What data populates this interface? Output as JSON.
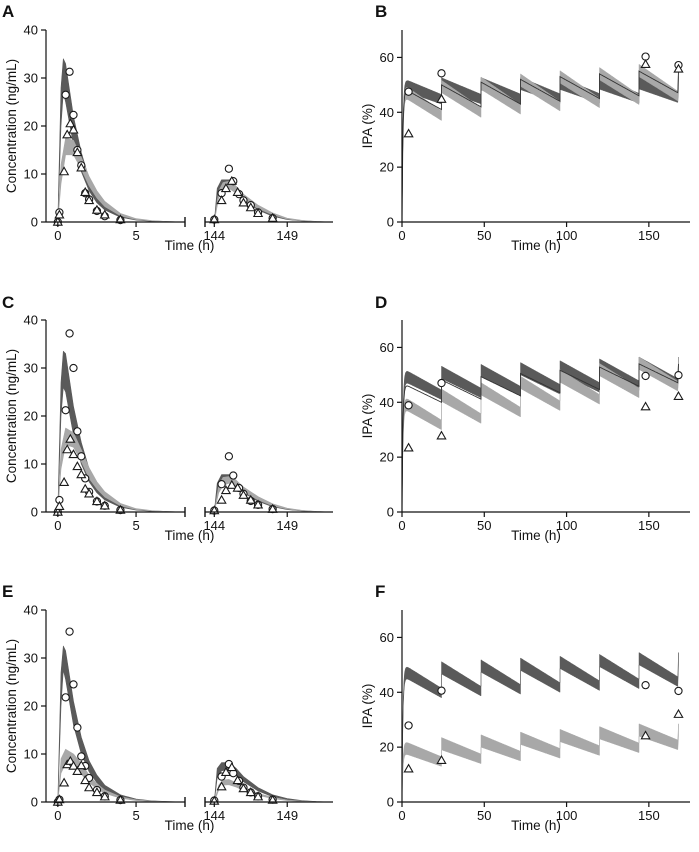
{
  "chart_data": [
    {
      "panel": "A",
      "type": "line",
      "ylabel": "Concentration (ng/mL)",
      "xlabel": "Time (h)",
      "ylim": [
        0,
        40
      ],
      "yticks": [
        0,
        10,
        20,
        30,
        40
      ],
      "xticks": [
        0,
        5,
        144,
        149
      ],
      "xlim_segments": [
        [
          -0.5,
          8
        ],
        [
          143.5,
          152
        ]
      ],
      "bands": [
        {
          "name": "dark band",
          "color": "#5a5a5a",
          "x": [
            0,
            0.2,
            0.35,
            0.5,
            1,
            1.5,
            2,
            2.5,
            3,
            4,
            5,
            6,
            7,
            8
          ],
          "lower": [
            0,
            20,
            27,
            25,
            16,
            10.5,
            6.5,
            4,
            2.5,
            1,
            0.4,
            0.15,
            0.05,
            0
          ],
          "upper": [
            0,
            28,
            34,
            33,
            22,
            14.5,
            9,
            5.8,
            3.6,
            1.5,
            0.6,
            0.25,
            0.1,
            0
          ]
        },
        {
          "name": "light band",
          "color": "#a8a8a8",
          "x": [
            0,
            0.2,
            0.5,
            1,
            1.5,
            2,
            2.5,
            3,
            4,
            5,
            6,
            7,
            8
          ],
          "lower": [
            0,
            8,
            14,
            14,
            11,
            7.5,
            5,
            3.2,
            1.3,
            0.5,
            0.2,
            0.08,
            0
          ],
          "upper": [
            0,
            12,
            17.5,
            17,
            13.5,
            9.5,
            6.5,
            4.3,
            1.8,
            0.7,
            0.3,
            0.1,
            0
          ]
        },
        {
          "name": "dark band late",
          "color": "#5a5a5a",
          "x": [
            144,
            144.2,
            144.5,
            145,
            145.5,
            146,
            147,
            148,
            149,
            150,
            151,
            152
          ],
          "lower": [
            0,
            5,
            7,
            7.3,
            6,
            4.5,
            2.5,
            1.2,
            0.5,
            0.2,
            0.08,
            0
          ],
          "upper": [
            0,
            7,
            8.8,
            8.8,
            7.4,
            5.6,
            3.2,
            1.6,
            0.7,
            0.3,
            0.1,
            0
          ]
        },
        {
          "name": "light band late",
          "color": "#a8a8a8",
          "x": [
            144,
            144.3,
            144.6,
            145,
            145.5,
            146,
            147,
            148,
            149,
            150,
            151,
            152
          ],
          "lower": [
            0,
            5,
            6.5,
            7,
            6,
            4.6,
            2.8,
            1.5,
            0.6,
            0.25,
            0.1,
            0
          ],
          "upper": [
            0,
            6.5,
            8.2,
            8.5,
            7.4,
            5.8,
            3.5,
            1.9,
            0.8,
            0.35,
            0.12,
            0
          ]
        }
      ],
      "circles": {
        "x": [
          0,
          0.1,
          0.5,
          0.75,
          1,
          1.25,
          1.5,
          1.75,
          2,
          2.5,
          3,
          4,
          144,
          144.5,
          145,
          145.3,
          145.7,
          146,
          146.5,
          147,
          148
        ],
        "y": [
          0,
          2,
          26.5,
          31.3,
          22.3,
          15,
          11.8,
          6,
          4.7,
          2.3,
          1.2,
          0.4,
          0.5,
          6,
          11.1,
          8.5,
          5.8,
          4.5,
          3.5,
          2,
          0.8
        ]
      },
      "triangles": {
        "x": [
          0,
          0.1,
          0.4,
          0.6,
          0.8,
          1,
          1.25,
          1.5,
          1.75,
          2,
          2.5,
          3,
          4,
          144,
          144.5,
          144.8,
          145.2,
          145.6,
          146,
          146.5,
          147,
          148
        ],
        "y": [
          0,
          1.5,
          10.5,
          18.2,
          20.5,
          19.2,
          14.5,
          11.3,
          6.2,
          4.5,
          2.5,
          1.5,
          0.5,
          0.5,
          4.5,
          7,
          8.5,
          6.2,
          4,
          3,
          1.8,
          0.8
        ]
      }
    },
    {
      "panel": "B",
      "type": "line",
      "ylabel": "IPA (%)",
      "xlabel": "Time (h)",
      "ylim": [
        0,
        70
      ],
      "yticks": [
        0,
        20,
        40,
        60
      ],
      "xlim": [
        0,
        175
      ],
      "xticks": [
        0,
        50,
        100,
        150
      ],
      "ipa_profile": {
        "dark": {
          "min": 43,
          "max": 50,
          "drift": 0.5
        },
        "light": {
          "min": 37,
          "max": 48,
          "drift": 7
        },
        "line": {
          "min": 41,
          "max": 49,
          "drift": 6
        }
      },
      "circles": {
        "x": [
          4,
          24,
          148,
          168
        ],
        "y": [
          47.5,
          54.2,
          60.3,
          57.2
        ]
      },
      "triangles": {
        "x": [
          4,
          24,
          148,
          168
        ],
        "y": [
          32.2,
          44.8,
          57.5,
          55.8
        ]
      }
    },
    {
      "panel": "C",
      "type": "line",
      "ylabel": "Concentration (ng/mL)",
      "xlabel": "Time (h)",
      "ylim": [
        0,
        40
      ],
      "yticks": [
        0,
        10,
        20,
        30,
        40
      ],
      "xticks": [
        0,
        5,
        144,
        149
      ],
      "xlim_segments": [
        [
          -0.5,
          8
        ],
        [
          143.5,
          152
        ]
      ],
      "bands": [
        {
          "name": "dark band",
          "color": "#5a5a5a",
          "x": [
            0,
            0.2,
            0.35,
            0.5,
            1,
            1.5,
            2,
            2.5,
            3,
            4,
            5,
            6,
            7,
            8
          ],
          "lower": [
            0,
            20,
            26,
            25,
            16,
            10,
            6.3,
            4,
            2.5,
            1,
            0.4,
            0.15,
            0.05,
            0
          ],
          "upper": [
            0,
            27,
            33.5,
            33,
            22,
            14.5,
            9,
            5.8,
            3.6,
            1.5,
            0.6,
            0.25,
            0.1,
            0
          ]
        },
        {
          "name": "light band",
          "color": "#a8a8a8",
          "x": [
            0,
            0.2,
            0.5,
            1,
            1.5,
            2,
            2.5,
            3,
            4,
            5,
            6,
            7,
            8
          ],
          "lower": [
            0,
            9,
            14,
            13.5,
            10.5,
            7,
            4.8,
            3.1,
            1.3,
            0.5,
            0.2,
            0.08,
            0
          ],
          "upper": [
            0,
            13,
            17.5,
            16.5,
            13,
            9.2,
            6.3,
            4.2,
            1.8,
            0.7,
            0.3,
            0.1,
            0
          ]
        },
        {
          "name": "dark band late",
          "color": "#5a5a5a",
          "x": [
            144,
            144.2,
            144.5,
            145,
            145.5,
            146,
            147,
            148,
            149,
            150,
            151,
            152
          ],
          "lower": [
            0,
            4,
            6,
            6.2,
            5.2,
            4,
            2.2,
            1.1,
            0.5,
            0.2,
            0.08,
            0
          ],
          "upper": [
            0,
            6,
            7.8,
            7.8,
            6.6,
            5,
            2.9,
            1.5,
            0.7,
            0.3,
            0.1,
            0
          ]
        },
        {
          "name": "light band late",
          "color": "#a8a8a8",
          "x": [
            144,
            144.3,
            144.6,
            145,
            145.5,
            146,
            147,
            148,
            149,
            150,
            151,
            152
          ],
          "lower": [
            0,
            4,
            5.5,
            6,
            5.3,
            4.2,
            2.5,
            1.3,
            0.6,
            0.25,
            0.1,
            0
          ],
          "upper": [
            0,
            5.5,
            7.2,
            7.4,
            6.6,
            5.2,
            3.2,
            1.7,
            0.8,
            0.35,
            0.12,
            0
          ]
        }
      ],
      "circles": {
        "x": [
          0,
          0.1,
          0.5,
          0.75,
          1,
          1.25,
          1.5,
          1.75,
          2,
          2.5,
          3,
          4,
          144,
          144.5,
          145,
          145.3,
          145.7,
          146,
          146.5,
          147,
          148
        ],
        "y": [
          0,
          2.5,
          21.2,
          37.2,
          30,
          16.8,
          11.6,
          7,
          4.2,
          2.2,
          1.3,
          0.4,
          0.3,
          5.8,
          11.6,
          7.6,
          5,
          3.8,
          2.3,
          1.5,
          0.6
        ]
      },
      "triangles": {
        "x": [
          0,
          0.1,
          0.4,
          0.6,
          0.8,
          1,
          1.25,
          1.5,
          1.75,
          2,
          2.5,
          3,
          4,
          144,
          144.5,
          144.8,
          145.2,
          145.6,
          146,
          146.5,
          147,
          148
        ],
        "y": [
          0,
          1.2,
          6.2,
          13,
          15.2,
          12,
          9.5,
          7.8,
          4.8,
          3.8,
          2.2,
          1.3,
          0.4,
          0.3,
          2.5,
          4.5,
          5.6,
          5,
          3.5,
          2.5,
          1.5,
          0.6
        ]
      }
    },
    {
      "panel": "D",
      "type": "line",
      "ylabel": "IPA (%)",
      "xlabel": "Time (h)",
      "ylim": [
        0,
        70
      ],
      "yticks": [
        0,
        20,
        40,
        60
      ],
      "xlim": [
        0,
        175
      ],
      "xticks": [
        0,
        50,
        100,
        150
      ],
      "ipa_profile": {
        "dark": {
          "min": 41,
          "max": 50,
          "drift": 4
        },
        "light": {
          "min": 30,
          "max": 40,
          "drift": 14
        },
        "line": {
          "min": 40,
          "max": 47,
          "drift": 7
        }
      },
      "circles": {
        "x": [
          4,
          24,
          148,
          168
        ],
        "y": [
          38.9,
          47,
          49.6,
          49.9
        ]
      },
      "triangles": {
        "x": [
          4,
          24,
          148,
          168
        ],
        "y": [
          23.4,
          27.8,
          38.4,
          42.2
        ]
      }
    },
    {
      "panel": "E",
      "type": "line",
      "ylabel": "Concentration (ng/mL)",
      "xlabel": "Time (h)",
      "ylim": [
        0,
        40
      ],
      "yticks": [
        0,
        10,
        20,
        30,
        40
      ],
      "xticks": [
        0,
        5,
        144,
        149
      ],
      "xlim_segments": [
        [
          -0.5,
          8
        ],
        [
          143.5,
          152
        ]
      ],
      "bands": [
        {
          "name": "dark band",
          "color": "#5a5a5a",
          "x": [
            0,
            0.2,
            0.35,
            0.5,
            1,
            1.5,
            2,
            2.5,
            3,
            4,
            5,
            6,
            7,
            8
          ],
          "lower": [
            0,
            20,
            27.5,
            25.5,
            16,
            10,
            6.3,
            4,
            2.5,
            1,
            0.4,
            0.15,
            0.05,
            0
          ],
          "upper": [
            0,
            27,
            32.5,
            31.5,
            21,
            13.5,
            8.6,
            5.6,
            3.5,
            1.5,
            0.6,
            0.25,
            0.1,
            0
          ]
        },
        {
          "name": "light band",
          "color": "#a8a8a8",
          "x": [
            0,
            0.2,
            0.5,
            1,
            1.5,
            2,
            2.5,
            3,
            4,
            5,
            6,
            7,
            8
          ],
          "lower": [
            0,
            6,
            8,
            7.5,
            5.8,
            4,
            2.8,
            1.8,
            0.8,
            0.3,
            0.12,
            0.05,
            0
          ],
          "upper": [
            0,
            9,
            11,
            10,
            8,
            5.6,
            3.8,
            2.5,
            1.1,
            0.45,
            0.18,
            0.07,
            0
          ]
        },
        {
          "name": "dark band late",
          "color": "#5a5a5a",
          "x": [
            144,
            144.2,
            144.5,
            145,
            145.5,
            146,
            147,
            148,
            149,
            150,
            151,
            152
          ],
          "lower": [
            0,
            5,
            6.5,
            6.8,
            5.5,
            4.2,
            2.3,
            1.1,
            0.5,
            0.2,
            0.08,
            0
          ],
          "upper": [
            0,
            7,
            8.2,
            8.2,
            7,
            5.3,
            3,
            1.5,
            0.7,
            0.3,
            0.1,
            0
          ]
        },
        {
          "name": "light band late",
          "color": "#a8a8a8",
          "x": [
            144,
            144.3,
            144.6,
            145,
            145.5,
            146,
            147,
            148,
            149,
            150,
            151,
            152
          ],
          "lower": [
            0,
            2.5,
            3.5,
            3.6,
            3.1,
            2.4,
            1.4,
            0.7,
            0.3,
            0.12,
            0.05,
            0
          ],
          "upper": [
            0,
            3.5,
            4.6,
            4.7,
            4,
            3.1,
            1.8,
            1,
            0.4,
            0.18,
            0.07,
            0
          ]
        }
      ],
      "circles": {
        "x": [
          0,
          0.1,
          0.5,
          0.75,
          1,
          1.25,
          1.5,
          1.75,
          2,
          2.5,
          3,
          4,
          144,
          144.5,
          145,
          145.3,
          145.7,
          146,
          146.5,
          147,
          148
        ],
        "y": [
          0,
          0.5,
          21.8,
          35.5,
          24.5,
          15.5,
          9.5,
          7.5,
          5,
          2.5,
          1.2,
          0.4,
          0.3,
          5.3,
          7.9,
          6,
          4.4,
          3,
          2,
          1.2,
          0.5
        ]
      },
      "triangles": {
        "x": [
          0,
          0.1,
          0.4,
          0.6,
          0.8,
          1,
          1.25,
          1.5,
          1.75,
          2,
          2.5,
          3,
          4,
          144,
          144.5,
          144.8,
          145.2,
          145.6,
          146,
          146.5,
          147,
          148
        ],
        "y": [
          0,
          0.5,
          4,
          7.8,
          8.5,
          7.5,
          6.4,
          7.6,
          4.5,
          3,
          2,
          1.1,
          0.4,
          0.2,
          3.2,
          6.2,
          7.2,
          4.5,
          2.8,
          2,
          1.1,
          0.4
        ]
      }
    },
    {
      "panel": "F",
      "type": "line",
      "ylabel": "IPA (%)",
      "xlabel": "Time (h)",
      "ylim": [
        0,
        70
      ],
      "yticks": [
        0,
        20,
        40,
        60
      ],
      "xlim": [
        0,
        175
      ],
      "xticks": [
        0,
        50,
        100,
        150
      ],
      "ipa_profile": {
        "dark": {
          "min": 38,
          "max": 48,
          "drift": 4
        },
        "light": {
          "min": 13,
          "max": 20,
          "drift": 6
        },
        "line": null
      },
      "circles": {
        "x": [
          4,
          24,
          148,
          168
        ],
        "y": [
          27.9,
          40.6,
          42.6,
          40.5
        ]
      },
      "triangles": {
        "x": [
          4,
          24,
          148,
          168
        ],
        "y": [
          12.1,
          15.2,
          24.2,
          32
        ]
      }
    }
  ],
  "labels": {
    "panels": [
      "A",
      "B",
      "C",
      "D",
      "E",
      "F"
    ],
    "pk_ylabel": "Concentration (ng/mL)",
    "ipa_ylabel": "IPA (%)",
    "xlabel": "Time (h)"
  },
  "colors": {
    "dark_band": "#5a5a5a",
    "light_band": "#a8a8a8",
    "marker_stroke": "#1a1a1a",
    "axis": "#111111"
  }
}
